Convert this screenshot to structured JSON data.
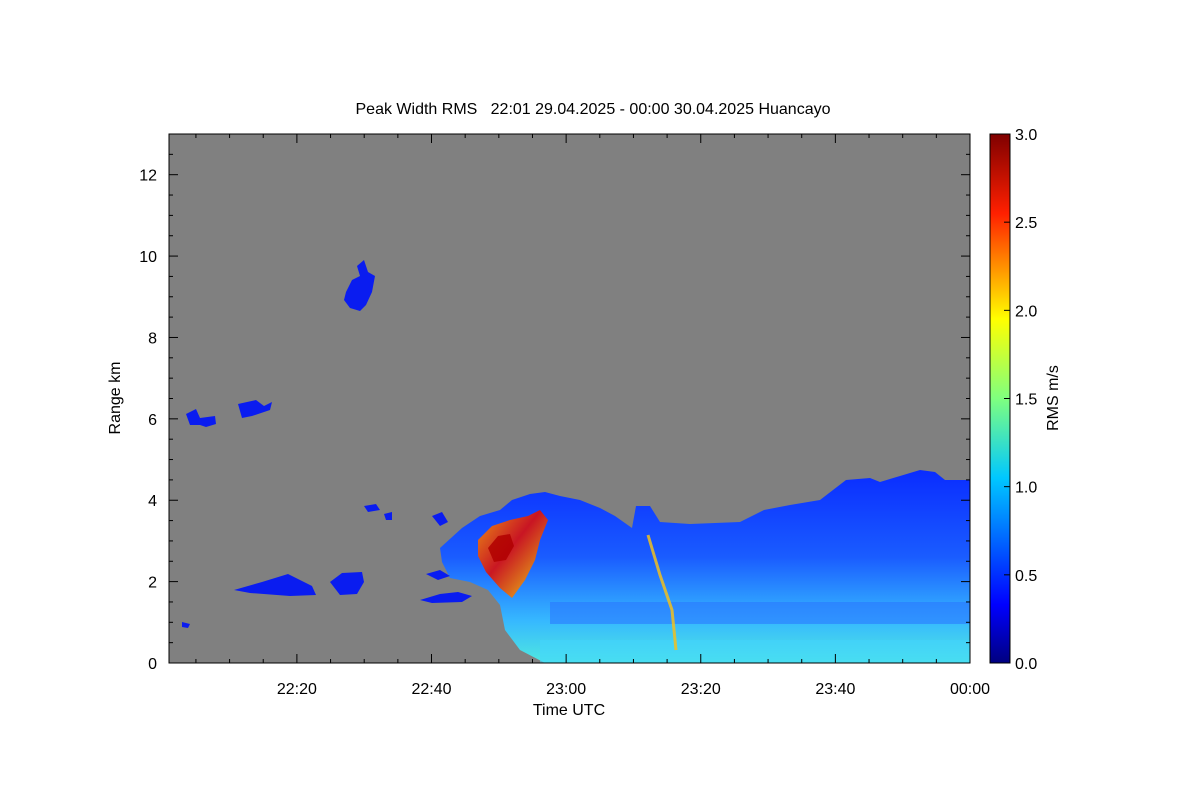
{
  "chart_data": {
    "type": "heatmap",
    "title": "Peak Width RMS   22:01 29.04.2025 - 00:00 30.04.2025 Huancayo",
    "xlabel": "Time UTC",
    "ylabel": "Range km",
    "xlim_minutes_after_2200": [
      1,
      120
    ],
    "ylim": [
      0,
      13
    ],
    "x_ticks": [
      {
        "label": "22:20",
        "minutes_after_2200": 20
      },
      {
        "label": "22:40",
        "minutes_after_2200": 40
      },
      {
        "label": "23:00",
        "minutes_after_2200": 60
      },
      {
        "label": "23:20",
        "minutes_after_2200": 80
      },
      {
        "label": "23:40",
        "minutes_after_2200": 100
      },
      {
        "label": "00:00",
        "minutes_after_2200": 120
      }
    ],
    "y_ticks": [
      0,
      2,
      4,
      6,
      8,
      10,
      12
    ],
    "colorbar": {
      "label": "RMS m/s",
      "range": [
        0.0,
        3.0
      ],
      "ticks": [
        "0.0",
        "0.5",
        "1.0",
        "1.5",
        "2.0",
        "2.5",
        "3.0"
      ],
      "colormap": "jet"
    },
    "missing_color": "#808080",
    "echo_regions": [
      {
        "t": [
          29,
          31
        ],
        "r": [
          8.7,
          9.9
        ],
        "rms": 0.3
      },
      {
        "t": [
          4,
          9
        ],
        "r": [
          5.9,
          6.3
        ],
        "rms": 0.3
      },
      {
        "t": [
          11,
          16
        ],
        "r": [
          6.1,
          6.5
        ],
        "rms": 0.3
      },
      {
        "t": [
          10,
          20
        ],
        "r": [
          1.8,
          2.3
        ],
        "rms": 0.3
      },
      {
        "t": [
          25,
          29
        ],
        "r": [
          1.7,
          2.3
        ],
        "rms": 0.3
      },
      {
        "t": [
          38,
          50
        ],
        "r": [
          1.4,
          3.6
        ],
        "rms": 1.2
      },
      {
        "t": [
          48,
          120
        ],
        "r": [
          0,
          4.6
        ],
        "rms": 0.7
      },
      {
        "t": [
          48,
          52
        ],
        "r": [
          2.0,
          3.6
        ],
        "rms": 2.5
      },
      {
        "t": [
          71,
          72
        ],
        "r": [
          0.5,
          3.0
        ],
        "rms": 1.6
      }
    ]
  }
}
